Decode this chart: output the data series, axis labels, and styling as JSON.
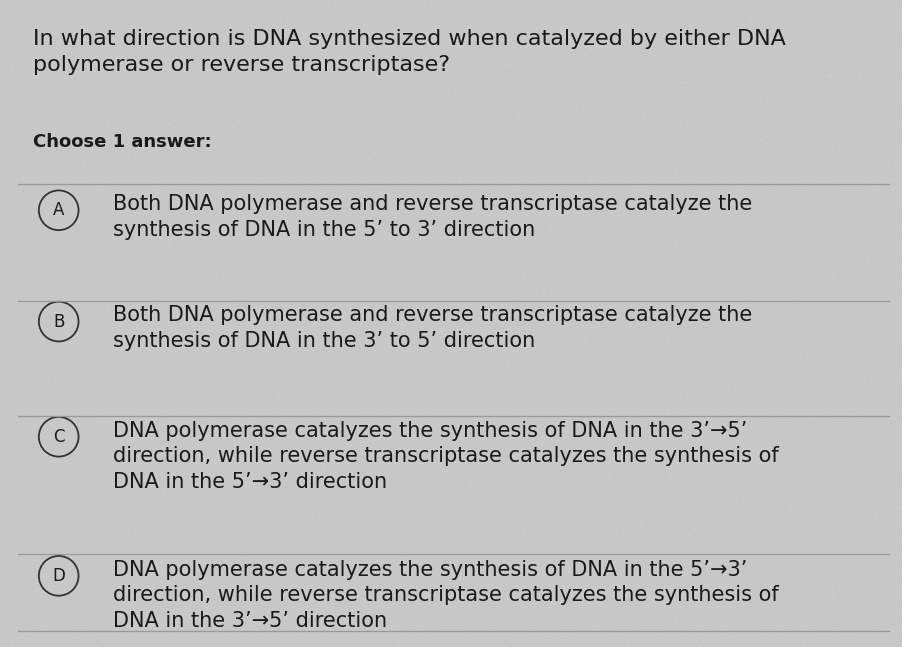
{
  "question": "In what direction is DNA synthesized when catalyzed by either DNA\npolymerase or reverse transcriptase?",
  "choose_label": "Choose 1 answer:",
  "options": [
    {
      "letter": "A",
      "text": "Both DNA polymerase and reverse transcriptase catalyze the\nsynthesis of DNA in the 5’ to 3’ direction",
      "num_lines": 2
    },
    {
      "letter": "B",
      "text": "Both DNA polymerase and reverse transcriptase catalyze the\nsynthesis of DNA in the 3’ to 5’ direction",
      "num_lines": 2
    },
    {
      "letter": "C",
      "text": "DNA polymerase catalyzes the synthesis of DNA in the 3’→5’\ndirection, while reverse transcriptase catalyzes the synthesis of\nDNA in the 5’→3’ direction",
      "num_lines": 3
    },
    {
      "letter": "D",
      "text": "DNA polymerase catalyzes the synthesis of DNA in the 5’→3’\ndirection, while reverse transcriptase catalyzes the synthesis of\nDNA in the 3’→5’ direction",
      "num_lines": 3
    }
  ],
  "bg_color": "#c8c8c8",
  "text_color": "#1a1a1a",
  "line_color": "#999999",
  "circle_edge_color": "#333333",
  "question_fontsize": 16,
  "choose_fontsize": 13,
  "option_fontsize": 15,
  "letter_fontsize": 12
}
